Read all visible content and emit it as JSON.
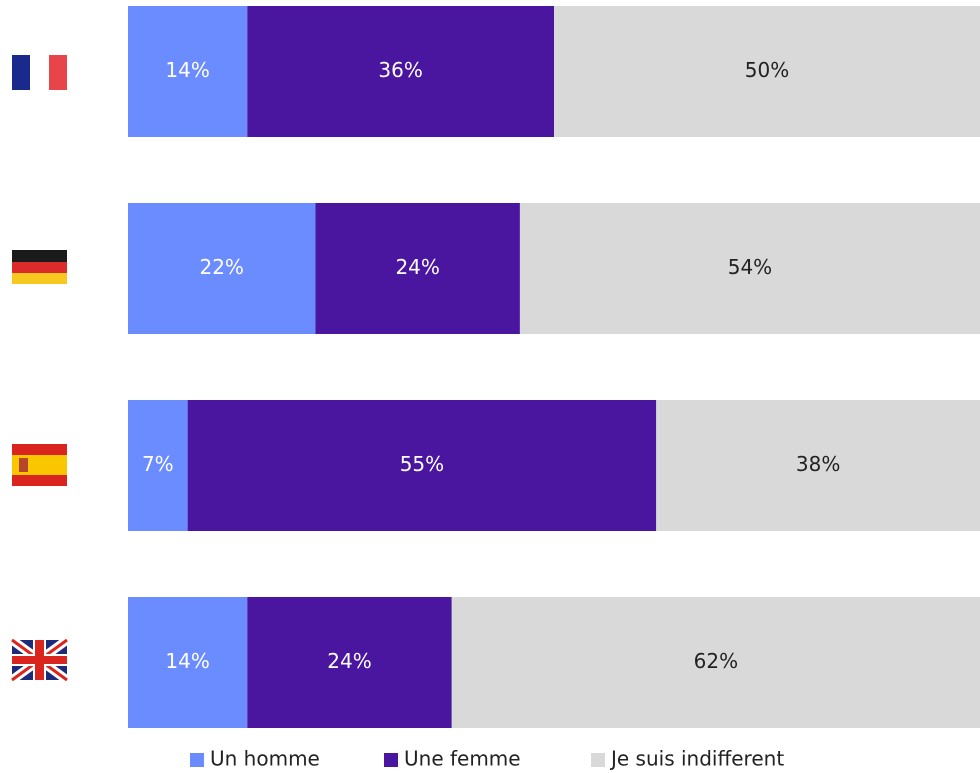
{
  "chart_data": {
    "type": "stacked-bar-horizontal",
    "categories": [
      null,
      null,
      null,
      null
    ],
    "xlim": [
      0,
      100
    ],
    "series": [
      {
        "name": "Un homme",
        "color": "#6b8cff",
        "values": [
          14,
          22,
          7,
          14
        ],
        "value_labels": [
          "14%",
          "22%",
          "7%",
          "14%"
        ]
      },
      {
        "name": "Une femme",
        "color": "#4a16a0",
        "values": [
          36,
          24,
          55,
          24
        ],
        "value_labels": [
          "36%",
          "24%",
          "55%",
          "24%"
        ]
      },
      {
        "name": "Je suis indifferent",
        "color": "#d9d9d9",
        "values": [
          50,
          54,
          38,
          62
        ],
        "value_labels": [
          "50%",
          "54%",
          "38%",
          "62%"
        ]
      }
    ]
  }
}
